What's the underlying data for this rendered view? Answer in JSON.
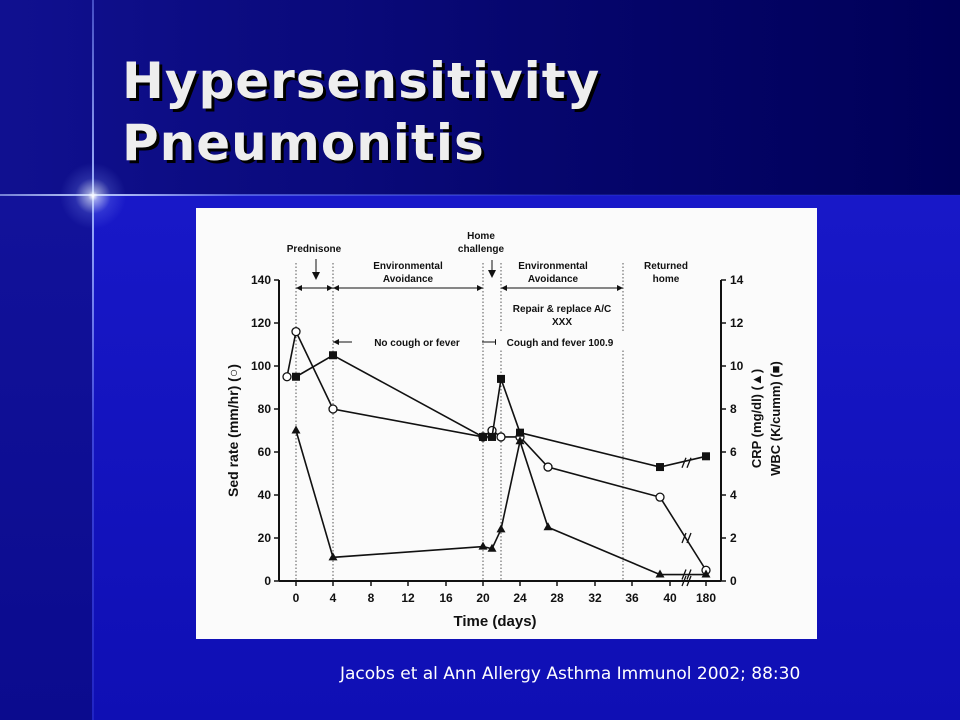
{
  "slide": {
    "title_line1": "Hypersensitivity",
    "title_line2": "Pneumonitis",
    "citation": "Jacobs et al Ann Allergy Asthma Immunol 2002; 88:30",
    "colors": {
      "background": "#1414b8",
      "title": "#eeeeee",
      "citation": "#ffffff"
    }
  },
  "chart_data": {
    "type": "line",
    "xlabel": "Time (days)",
    "ylabel_left": "Sed rate (mm/hr) (○)",
    "ylabel_right": [
      "CRP (mg/dl) (▲)",
      "WBC (K/cumm) (■)"
    ],
    "x_ticks": [
      "0",
      "4",
      "8",
      "12",
      "16",
      "20",
      "24",
      "28",
      "32",
      "36",
      "40",
      "180"
    ],
    "y_ticks_left": [
      0,
      20,
      40,
      60,
      80,
      100,
      120,
      140
    ],
    "y_ticks_right": [
      0,
      2,
      4,
      6,
      8,
      10,
      12,
      14
    ],
    "ylim_left": [
      0,
      140
    ],
    "ylim_right": [
      0,
      14
    ],
    "series": [
      {
        "label": "Sed rate",
        "axis": "left",
        "marker": "open-circle",
        "points": [
          [
            -1,
            95
          ],
          [
            0,
            116
          ],
          [
            4,
            80
          ],
          [
            20,
            67
          ],
          [
            21,
            70
          ],
          [
            22,
            67
          ],
          [
            24,
            67
          ],
          [
            27,
            53
          ],
          [
            39,
            39
          ],
          [
            180,
            5
          ]
        ]
      },
      {
        "label": "CRP",
        "axis": "right",
        "marker": "filled-triangle",
        "points": [
          [
            0,
            7
          ],
          [
            4,
            1.1
          ],
          [
            20,
            1.6
          ],
          [
            21,
            1.5
          ],
          [
            22,
            2.4
          ],
          [
            24,
            6.5
          ],
          [
            27,
            2.5
          ],
          [
            39,
            0.3
          ],
          [
            180,
            0.3
          ]
        ]
      },
      {
        "label": "WBC",
        "axis": "right",
        "marker": "filled-square",
        "points": [
          [
            0,
            9.5
          ],
          [
            4,
            10.5
          ],
          [
            20,
            6.7
          ],
          [
            21,
            6.7
          ],
          [
            22,
            9.4
          ],
          [
            24,
            6.9
          ],
          [
            39,
            5.3
          ],
          [
            180,
            5.8
          ]
        ]
      }
    ],
    "annotations": {
      "phase_labels": [
        {
          "text": "Prednisone",
          "x": 2.5
        },
        {
          "lines": [
            "Environmental",
            "Avoidance"
          ],
          "x": 12
        },
        {
          "lines": [
            "Home",
            "challenge"
          ],
          "x": 21
        },
        {
          "lines": [
            "Environmental",
            "Avoidance"
          ],
          "x": 29
        },
        {
          "lines": [
            "Returned",
            "home"
          ],
          "x": 39
        }
      ],
      "phase_spans": [
        [
          0,
          4
        ],
        [
          4,
          20
        ],
        [
          22,
          35
        ]
      ],
      "event_spans": [
        {
          "text": "No cough or fever",
          "from": 4,
          "to": 22
        },
        {
          "text": "Cough and fever 100.9",
          "from": 22,
          "to": 35
        }
      ],
      "box_lines": [
        "Repair & replace A/C",
        "XXX"
      ],
      "dividers": [
        0,
        4,
        20,
        22,
        35
      ]
    }
  }
}
